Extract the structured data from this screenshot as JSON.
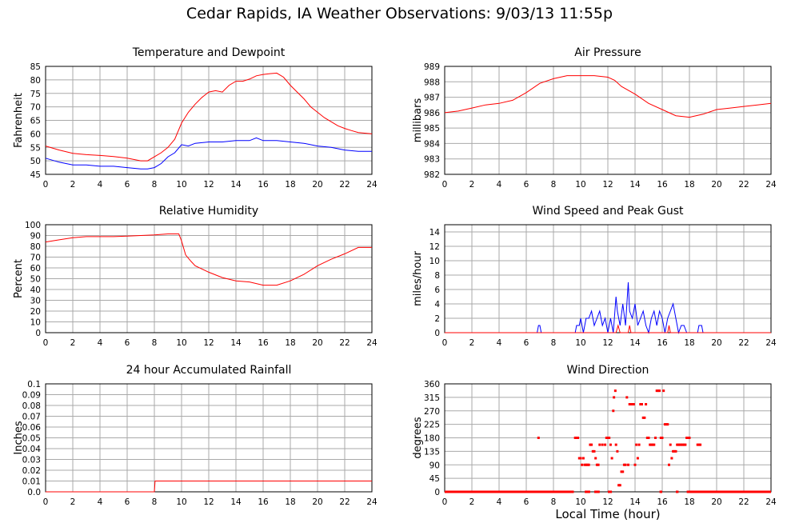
{
  "title": "Cedar Rapids, IA Weather Observations: 9/03/13 11:55p",
  "x_axis_label": "Local Time (hour)",
  "colors": {
    "red": "#ff0000",
    "blue": "#0000ff",
    "grid": "#a9a9a9",
    "frame": "#000000"
  },
  "chart_data": [
    {
      "id": "temp",
      "type": "line",
      "title": "Temperature and Dewpoint",
      "xlabel": "",
      "ylabel": "Fahrenheit",
      "xlim": [
        0,
        24
      ],
      "ylim": [
        45,
        85
      ],
      "x_ticks": [
        0,
        2,
        4,
        6,
        8,
        10,
        12,
        14,
        16,
        18,
        20,
        22,
        24
      ],
      "y_ticks": [
        45,
        50,
        55,
        60,
        65,
        70,
        75,
        80,
        85
      ],
      "grid": true,
      "series": [
        {
          "color": "#ff0000",
          "x": [
            0,
            1,
            2,
            3,
            4,
            5,
            6,
            7,
            7.5,
            8,
            8.5,
            9,
            9.5,
            10,
            10.5,
            11,
            11.5,
            12,
            12.5,
            13,
            13.5,
            14,
            14.5,
            15,
            15.5,
            16,
            16.5,
            17,
            17.5,
            18,
            18.5,
            19,
            19.5,
            20,
            20.5,
            21,
            21.5,
            22,
            22.5,
            23,
            24
          ],
          "y": [
            55.5,
            54,
            52.8,
            52.3,
            52,
            51.6,
            51,
            50,
            50,
            51.5,
            53,
            55,
            58,
            64,
            68,
            71,
            73.5,
            75.5,
            76,
            75.5,
            78,
            79.5,
            79.5,
            80.3,
            81.5,
            82,
            82.3,
            82.5,
            81,
            78,
            75.5,
            73,
            70,
            68,
            66,
            64.5,
            63,
            62,
            61.2,
            60.5,
            60
          ]
        },
        {
          "color": "#0000ff",
          "x": [
            0,
            1,
            2,
            3,
            4,
            5,
            6,
            7,
            7.5,
            8,
            8.5,
            9,
            9.5,
            10,
            10.5,
            11,
            12,
            13,
            14,
            15,
            15.5,
            16,
            17,
            18,
            19,
            20,
            21,
            22,
            23,
            24
          ],
          "y": [
            51,
            49.5,
            48.5,
            48.5,
            48,
            48,
            47.5,
            47,
            47,
            47.5,
            49,
            51.5,
            53,
            56,
            55.5,
            56.5,
            57,
            57,
            57.5,
            57.5,
            58.5,
            57.5,
            57.5,
            57,
            56.5,
            55.5,
            55,
            54,
            53.5,
            53.5
          ]
        }
      ]
    },
    {
      "id": "pressure",
      "type": "line",
      "title": "Air Pressure",
      "xlabel": "",
      "ylabel": "millibars",
      "xlim": [
        0,
        24
      ],
      "ylim": [
        982,
        989
      ],
      "x_ticks": [
        0,
        2,
        4,
        6,
        8,
        10,
        12,
        14,
        16,
        18,
        20,
        22,
        24
      ],
      "y_ticks": [
        982,
        983,
        984,
        985,
        986,
        987,
        988,
        989
      ],
      "grid": true,
      "series": [
        {
          "color": "#ff0000",
          "x": [
            0,
            1,
            2,
            3,
            4,
            5,
            6,
            7,
            8,
            9,
            10,
            11,
            12,
            12.5,
            13,
            14,
            15,
            16,
            17,
            18,
            19,
            20,
            21,
            22,
            23,
            24
          ],
          "y": [
            986.0,
            986.1,
            986.3,
            986.5,
            986.6,
            986.8,
            987.3,
            987.9,
            988.2,
            988.4,
            988.4,
            988.4,
            988.3,
            988.1,
            987.7,
            987.2,
            986.6,
            986.2,
            985.8,
            985.7,
            985.9,
            986.2,
            986.3,
            986.4,
            986.5,
            986.6
          ]
        }
      ]
    },
    {
      "id": "humidity",
      "type": "line",
      "title": "Relative Humidity",
      "xlabel": "",
      "ylabel": "Percent",
      "xlim": [
        0,
        24
      ],
      "ylim": [
        0,
        100
      ],
      "x_ticks": [
        0,
        2,
        4,
        6,
        8,
        10,
        12,
        14,
        16,
        18,
        20,
        22,
        24
      ],
      "y_ticks": [
        0,
        10,
        20,
        30,
        40,
        50,
        60,
        70,
        80,
        90,
        100
      ],
      "grid": true,
      "series": [
        {
          "color": "#ff0000",
          "x": [
            0,
            1,
            2,
            3,
            4,
            5,
            6,
            7,
            8,
            9,
            9.8,
            10,
            10.3,
            10.7,
            11,
            12,
            13,
            14,
            15,
            16,
            17,
            18,
            19,
            20,
            21,
            22,
            23,
            24
          ],
          "y": [
            84,
            86,
            88,
            89,
            89,
            89,
            89.5,
            90,
            90.5,
            91.5,
            91.5,
            85,
            72,
            66,
            62,
            56,
            51,
            48,
            47,
            44,
            44,
            48,
            54,
            62,
            68,
            73,
            79,
            79
          ]
        }
      ]
    },
    {
      "id": "wind",
      "type": "line",
      "title": "Wind Speed and Peak Gust",
      "xlabel": "",
      "ylabel": "miles/hour",
      "xlim": [
        0,
        24
      ],
      "ylim": [
        0,
        15
      ],
      "x_ticks": [
        0,
        2,
        4,
        6,
        8,
        10,
        12,
        14,
        16,
        18,
        20,
        22,
        24
      ],
      "y_ticks": [
        0,
        2,
        4,
        6,
        8,
        10,
        12,
        14
      ],
      "grid": true,
      "series": [
        {
          "color": "#0000ff",
          "x": [
            0,
            6.8,
            6.9,
            7.0,
            7.1,
            9.6,
            9.7,
            9.9,
            10.0,
            10.2,
            10.4,
            10.6,
            10.8,
            11.0,
            11.2,
            11.4,
            11.6,
            11.8,
            12.0,
            12.2,
            12.4,
            12.6,
            12.7,
            12.9,
            13.1,
            13.3,
            13.5,
            13.6,
            13.8,
            14.0,
            14.2,
            14.4,
            14.6,
            14.8,
            15.0,
            15.2,
            15.4,
            15.6,
            15.8,
            16.0,
            16.2,
            16.4,
            16.6,
            16.8,
            17.0,
            17.2,
            17.4,
            17.6,
            17.8,
            18.6,
            18.7,
            18.9,
            19.0,
            24
          ],
          "y": [
            0,
            0,
            1,
            1,
            0,
            0,
            1,
            1,
            2,
            0,
            2,
            2,
            3,
            1,
            2,
            3,
            1,
            2,
            0,
            2,
            0,
            5,
            3,
            1,
            4,
            1,
            7,
            3,
            2,
            4,
            1,
            2,
            3,
            1,
            0,
            2,
            3,
            1,
            3,
            2,
            0,
            2,
            3,
            4,
            2,
            0,
            1,
            1,
            0,
            0,
            1,
            1,
            0,
            0
          ]
        },
        {
          "color": "#ff0000",
          "x": [
            0,
            12.6,
            12.75,
            12.9,
            13.5,
            13.6,
            13.7,
            16.4,
            16.5,
            16.6,
            24
          ],
          "y": [
            0,
            0,
            1,
            0,
            0,
            1,
            0,
            0,
            1,
            0,
            0
          ]
        }
      ]
    },
    {
      "id": "rain",
      "type": "line",
      "title": "24 hour Accumulated Rainfall",
      "xlabel": "",
      "ylabel": "Inches",
      "xlim": [
        0,
        24
      ],
      "ylim": [
        0,
        0.1
      ],
      "x_ticks": [
        0,
        2,
        4,
        6,
        8,
        10,
        12,
        14,
        16,
        18,
        20,
        22,
        24
      ],
      "y_ticks": [
        "0.0",
        "0.01",
        "0.02",
        "0.03",
        "0.04",
        "0.05",
        "0.06",
        "0.07",
        "0.08",
        "0.09",
        "0.1"
      ],
      "grid": true,
      "series": [
        {
          "color": "#ff0000",
          "x": [
            0,
            8.0,
            8.05,
            24
          ],
          "y": [
            0,
            0,
            0.01,
            0.01
          ]
        }
      ]
    },
    {
      "id": "direction",
      "type": "scatter",
      "title": "Wind Direction",
      "xlabel": "Local Time (hour)",
      "ylabel": "degrees",
      "xlim": [
        0,
        24
      ],
      "ylim": [
        0,
        360
      ],
      "x_ticks": [
        0,
        2,
        4,
        6,
        8,
        10,
        12,
        14,
        16,
        18,
        20,
        22,
        24
      ],
      "y_ticks": [
        0,
        45,
        90,
        135,
        180,
        225,
        270,
        315,
        360
      ],
      "grid": true,
      "series": [
        {
          "color": "#ff0000",
          "baseline_y": 0,
          "baseline_x": [
            [
              0,
              9.5
            ],
            [
              10.3,
              10.7
            ],
            [
              11.0,
              11.4
            ],
            [
              12.0,
              12.3
            ],
            [
              15.8,
              16.0
            ],
            [
              17.0,
              17.2
            ],
            [
              17.8,
              24
            ]
          ],
          "x": [
            6.9,
            9.6,
            9.7,
            9.8,
            9.9,
            10.0,
            10.1,
            10.2,
            10.3,
            10.4,
            10.5,
            10.6,
            10.7,
            10.8,
            10.9,
            11.0,
            11.1,
            11.2,
            11.3,
            11.4,
            11.6,
            11.8,
            11.9,
            12.0,
            12.1,
            12.2,
            12.3,
            12.4,
            12.45,
            12.55,
            12.6,
            12.7,
            12.8,
            12.9,
            13.0,
            13.1,
            13.2,
            13.3,
            13.4,
            13.5,
            13.6,
            13.7,
            13.8,
            13.9,
            14.0,
            14.1,
            14.2,
            14.3,
            14.4,
            14.5,
            14.6,
            14.7,
            14.8,
            14.9,
            15.0,
            15.1,
            15.2,
            15.3,
            15.4,
            15.5,
            15.6,
            15.7,
            15.8,
            15.9,
            16.0,
            16.1,
            16.2,
            16.3,
            16.4,
            16.5,
            16.6,
            16.7,
            16.8,
            16.9,
            17.0,
            17.1,
            17.2,
            17.3,
            17.4,
            17.5,
            17.6,
            17.7,
            17.8,
            17.9,
            18.0,
            18.6,
            18.7,
            18.8
          ],
          "y": [
            180,
            180,
            180,
            180,
            112,
            112,
            90,
            112,
            90,
            90,
            90,
            90,
            157,
            157,
            135,
            135,
            112,
            90,
            90,
            157,
            157,
            157,
            180,
            180,
            180,
            157,
            112,
            270,
            315,
            337,
            157,
            135,
            22,
            22,
            67,
            67,
            90,
            90,
            315,
            90,
            292,
            292,
            292,
            292,
            90,
            157,
            112,
            157,
            292,
            292,
            247,
            247,
            292,
            180,
            180,
            157,
            157,
            157,
            157,
            180,
            337,
            337,
            337,
            180,
            180,
            337,
            225,
            225,
            225,
            90,
            157,
            112,
            135,
            135,
            135,
            157,
            157,
            157,
            157,
            157,
            157,
            157,
            180,
            180,
            180,
            157,
            157,
            157
          ]
        }
      ]
    }
  ]
}
